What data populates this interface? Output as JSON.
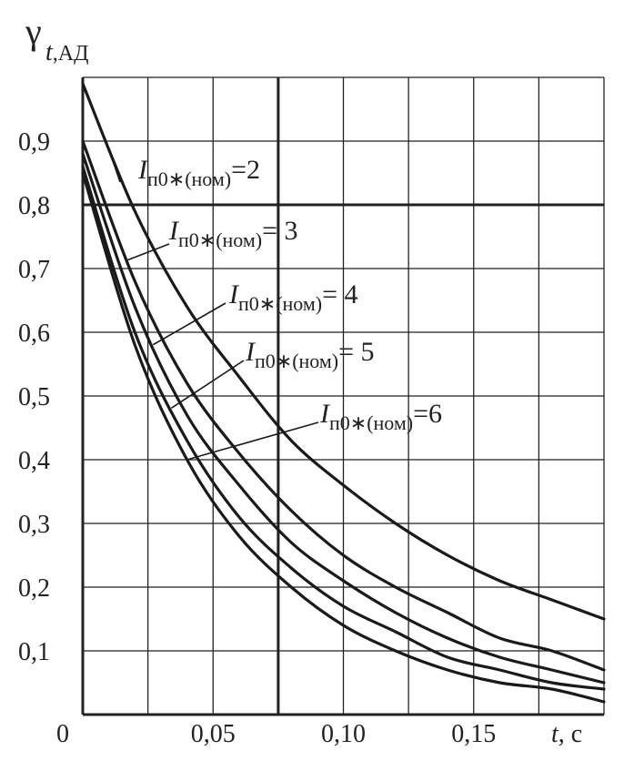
{
  "chart_data": {
    "type": "line",
    "y_symbol": "γ",
    "y_subscript_italic": "t",
    "y_subscript_rest": ",АД",
    "x_label_italic": "t",
    "x_label_rest": ", с",
    "origin_label": "0",
    "xlim": [
      0,
      0.2
    ],
    "ylim": [
      0,
      1.0
    ],
    "x_ticks": [
      {
        "value": 0.05,
        "label": "0,05"
      },
      {
        "value": 0.1,
        "label": "0,10"
      },
      {
        "value": 0.15,
        "label": "0,15"
      }
    ],
    "y_ticks": [
      {
        "value": 0.1,
        "label": "0,1"
      },
      {
        "value": 0.2,
        "label": "0,2"
      },
      {
        "value": 0.3,
        "label": "0,3"
      },
      {
        "value": 0.4,
        "label": "0,4"
      },
      {
        "value": 0.5,
        "label": "0,5"
      },
      {
        "value": 0.6,
        "label": "0,6"
      },
      {
        "value": 0.7,
        "label": "0,7"
      },
      {
        "value": 0.8,
        "label": "0,8"
      },
      {
        "value": 0.9,
        "label": "0,9"
      }
    ],
    "grid": true,
    "series": [
      {
        "name": "2",
        "x": [
          0,
          0.02,
          0.04,
          0.06,
          0.08,
          0.1,
          0.12,
          0.14,
          0.16,
          0.18,
          0.2
        ],
        "y": [
          0.99,
          0.79,
          0.64,
          0.53,
          0.43,
          0.36,
          0.3,
          0.25,
          0.21,
          0.18,
          0.15
        ]
      },
      {
        "name": "3",
        "x": [
          0,
          0.02,
          0.04,
          0.06,
          0.08,
          0.1,
          0.12,
          0.14,
          0.16,
          0.18,
          0.2
        ],
        "y": [
          0.9,
          0.68,
          0.52,
          0.41,
          0.32,
          0.25,
          0.2,
          0.16,
          0.12,
          0.1,
          0.07
        ]
      },
      {
        "name": "4",
        "x": [
          0,
          0.02,
          0.04,
          0.06,
          0.08,
          0.1,
          0.12,
          0.14,
          0.16,
          0.18,
          0.2
        ],
        "y": [
          0.88,
          0.64,
          0.47,
          0.36,
          0.27,
          0.21,
          0.16,
          0.12,
          0.09,
          0.07,
          0.05
        ]
      },
      {
        "name": "5",
        "x": [
          0,
          0.02,
          0.04,
          0.06,
          0.08,
          0.1,
          0.12,
          0.14,
          0.16,
          0.18,
          0.2
        ],
        "y": [
          0.86,
          0.6,
          0.43,
          0.31,
          0.23,
          0.17,
          0.13,
          0.09,
          0.07,
          0.05,
          0.04
        ]
      },
      {
        "name": "6",
        "x": [
          0,
          0.02,
          0.04,
          0.06,
          0.08,
          0.1,
          0.12,
          0.14,
          0.16,
          0.18,
          0.2
        ],
        "y": [
          0.85,
          0.58,
          0.4,
          0.28,
          0.2,
          0.14,
          0.1,
          0.07,
          0.05,
          0.04,
          0.02
        ]
      }
    ],
    "annotations": [
      {
        "series": "2",
        "italic": "I",
        "subscript": "п0∗(ном)",
        "eq": "=2"
      },
      {
        "series": "3",
        "italic": "I",
        "subscript": "п0∗(ном)",
        "eq": "= 3"
      },
      {
        "series": "4",
        "italic": "I",
        "subscript": "п0∗(ном)",
        "eq": "= 4"
      },
      {
        "series": "5",
        "italic": "I",
        "subscript": "п0∗(ном)",
        "eq": "= 5"
      },
      {
        "series": "6",
        "italic": "I",
        "subscript": "п0∗(ном)",
        "eq": "=6"
      }
    ]
  }
}
